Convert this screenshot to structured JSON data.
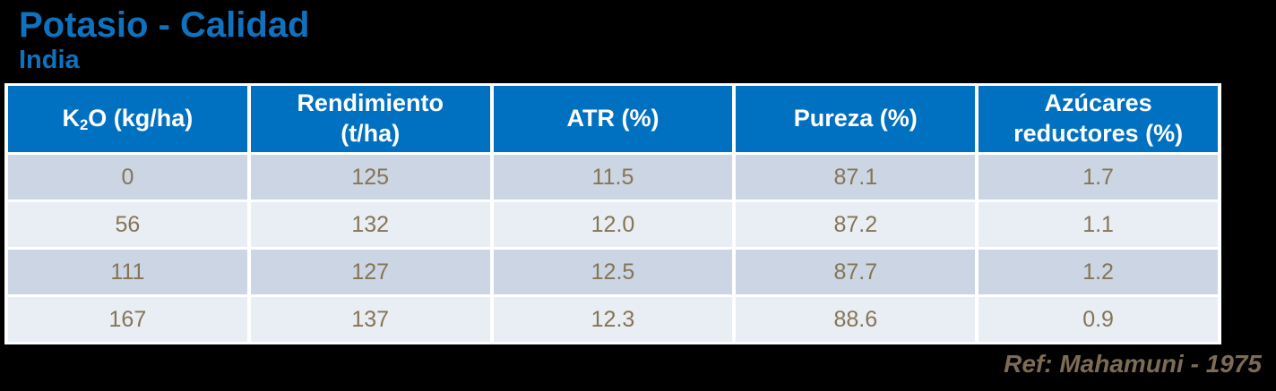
{
  "page": {
    "background": "#000000"
  },
  "title": "Potasio - Calidad",
  "subtitle": "India",
  "footer": "Ref: Mahamuni - 1975",
  "colors": {
    "title_blue": "#0E72BE",
    "header_blue": "#0070C0",
    "row_dark": "#CBD5E3",
    "row_light": "#E9EDF4",
    "data_text": "#867456",
    "footer_text": "#7C6C55"
  },
  "table": {
    "k2o_header": {
      "pre": "K",
      "sub": "2",
      "post": "O (kg/ha)"
    },
    "headers": [
      "K2O (kg/ha)",
      "Rendimiento\n(t/ha)",
      "ATR (%)",
      "Pureza (%)",
      "Azúcares\nreductores (%)"
    ],
    "rows": [
      [
        "0",
        "125",
        "11.5",
        "87.1",
        "1.7"
      ],
      [
        "56",
        "132",
        "12.0",
        "87.2",
        "1.1"
      ],
      [
        "111",
        "127",
        "12.5",
        "87.7",
        "1.2"
      ],
      [
        "167",
        "137",
        "12.3",
        "88.6",
        "0.9"
      ]
    ]
  },
  "chart_data": {
    "type": "table",
    "title": "Potasio - Calidad",
    "subtitle": "India",
    "columns": [
      "K2O (kg/ha)",
      "Rendimiento (t/ha)",
      "ATR (%)",
      "Pureza (%)",
      "Azúcares reductores (%)"
    ],
    "rows": [
      [
        0,
        125,
        11.5,
        87.1,
        1.7
      ],
      [
        56,
        132,
        12.0,
        87.2,
        1.1
      ],
      [
        111,
        127,
        12.5,
        87.7,
        1.2
      ],
      [
        167,
        137,
        12.3,
        88.6,
        0.9
      ]
    ],
    "reference": "Ref: Mahamuni - 1975",
    "layout": {
      "header_style": "blue fill, white bold text",
      "row_striping": "alternating light blue-gray",
      "footer_position": "bottom-right"
    }
  }
}
